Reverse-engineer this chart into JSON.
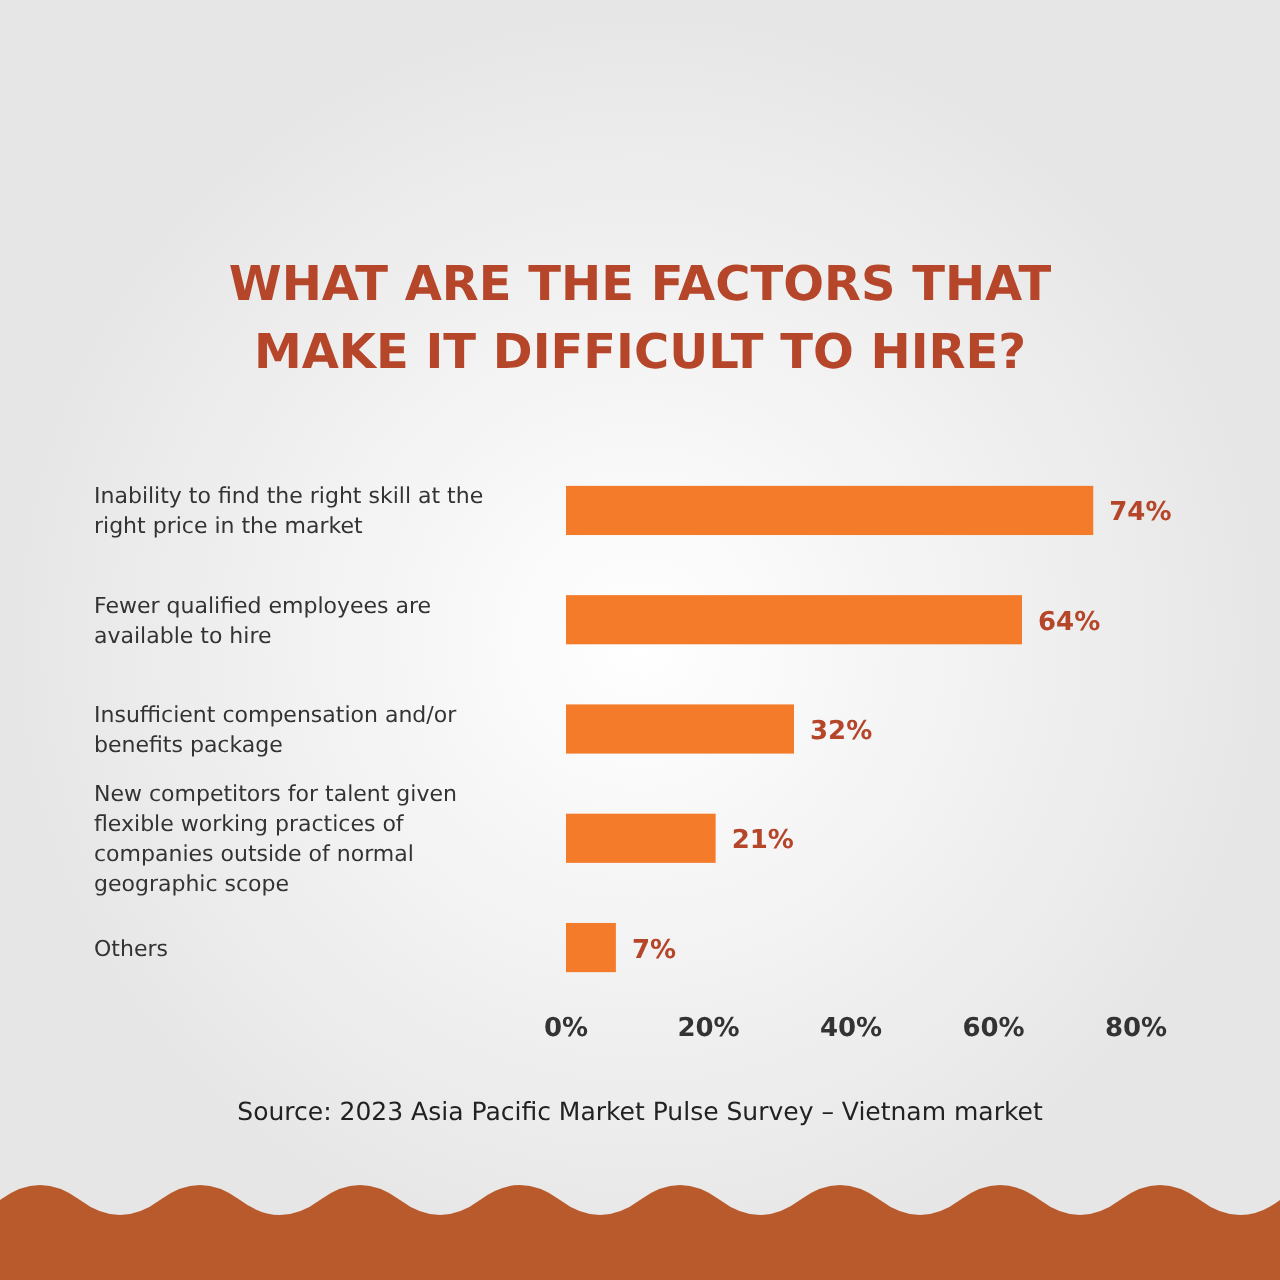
{
  "chart_data": {
    "type": "bar",
    "orientation": "horizontal",
    "title": "WHAT ARE THE FACTORS THAT MAKE IT DIFFICULT TO HIRE?",
    "categories": [
      "Inability to find the right skill at the right price in the market",
      "Fewer qualified employees are available to hire",
      "Insufficient compensation and/or benefits package",
      "New competitors for talent given flexible working practices of companies outside of normal geographic scope",
      "Others"
    ],
    "values": [
      74,
      64,
      32,
      21,
      7
    ],
    "color": "#f47b2a",
    "value_labels": [
      "74%",
      "64%",
      "32%",
      "21%",
      "7%"
    ],
    "xlim": [
      0,
      80
    ],
    "xticks": [
      {
        "value": 0,
        "label": "0%"
      },
      {
        "value": 20,
        "label": "20%"
      },
      {
        "value": 40,
        "label": "40%"
      },
      {
        "value": 60,
        "label": "60%"
      },
      {
        "value": 80,
        "label": "80%"
      }
    ],
    "grid": false,
    "annotations": [
      "Source: 2023 Asia Pacific Market Pulse Survey – Vietnam market"
    ]
  }
}
